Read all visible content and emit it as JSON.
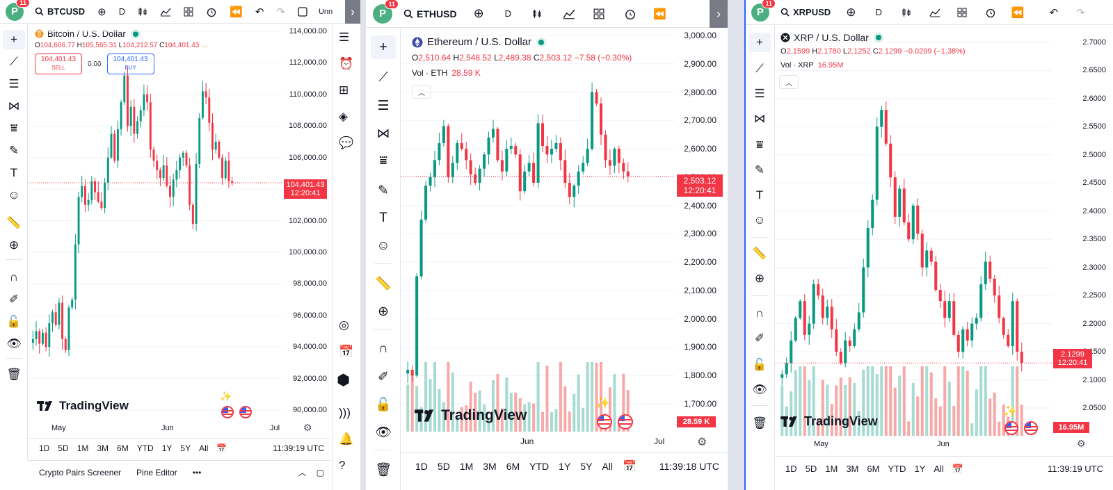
{
  "icons": {
    "add": "⊕",
    "interval": "D",
    "candles": "candle-icon",
    "indicators": "indicators-icon",
    "layout": "grid-icon",
    "alert": "alarm-icon",
    "replay": "replay-icon",
    "undo": "↶",
    "redo": "↷"
  },
  "windows": [
    {
      "symbol": "BTCUSD",
      "badge": "11",
      "avatar": "P",
      "partial_label": "Unn",
      "title": "Bitcoin / U.S. Dollar",
      "ohlc": {
        "o": "104,606.77",
        "h": "105,565.31",
        "l": "104,212.57",
        "c": "104,401.43"
      },
      "sell": {
        "price": "104,401.43",
        "label": "SELL"
      },
      "spread": "0.00",
      "buy": {
        "price": "104,401.43",
        "label": "BUY"
      },
      "price_tag": "104,401.43",
      "countdown": "12:20:41",
      "price_axis": [
        "114,000.00",
        "112,000.00",
        "110,000.00",
        "108,000.00",
        "106,000.00",
        "104,000.00",
        "102,000.00",
        "100,000.00",
        "98,000.00",
        "96,000.00",
        "94,000.00",
        "92,000.00",
        "90,000.00"
      ],
      "time_axis": [
        "May",
        "Jun",
        "Jul"
      ],
      "ranges": [
        "1D",
        "5D",
        "1M",
        "3M",
        "6M",
        "YTD",
        "1Y",
        "5Y",
        "All"
      ],
      "clock": "11:39:19 UTC",
      "panel_tabs": [
        "Crypto Pairs Screener",
        "Pine Editor"
      ],
      "brand": "TradingView"
    },
    {
      "symbol": "ETHUSD",
      "badge": "11",
      "avatar": "P",
      "title": "Ethereum / U.S. Dollar",
      "ohlc": {
        "o": "2,510.64",
        "h": "2,548.52",
        "l": "2,489.38",
        "c": "2,503.12",
        "chg": "−7.58 (−0.30%)"
      },
      "vol_label": "Vol · ETH",
      "vol_value": "28.59 K",
      "price_tag": "2,503.12",
      "countdown": "12:20:41",
      "vol_tag": "28.59 K",
      "price_axis": [
        "3,000.00",
        "2,900.00",
        "2,800.00",
        "2,700.00",
        "2,600.00",
        "2,500.00",
        "2,400.00",
        "2,300.00",
        "2,200.00",
        "2,100.00",
        "2,000.00",
        "1,900.00",
        "1,800.00",
        "1,700.00"
      ],
      "time_axis": [
        "Jun",
        "Jul"
      ],
      "ranges": [
        "1D",
        "5D",
        "1M",
        "3M",
        "6M",
        "YTD",
        "1Y",
        "5Y",
        "All"
      ],
      "clock": "11:39:18 UTC",
      "brand": "TradingView"
    },
    {
      "symbol": "XRPUSD",
      "badge": "11",
      "avatar": "P",
      "title": "XRP / U.S. Dollar",
      "ohlc": {
        "o": "2.1599",
        "h": "2.1780",
        "l": "2.1252",
        "c": "2.1299",
        "chg": "−0.0299 (−1.38%)"
      },
      "vol_label": "Vol · XRP",
      "vol_value": "16.95M",
      "price_tag": "2.1299",
      "countdown": "12:20:41",
      "vol_tag": "16.95M",
      "price_axis": [
        "2.7000",
        "2.6500",
        "2.6000",
        "2.5500",
        "2.5000",
        "2.4500",
        "2.4000",
        "2.3500",
        "2.3000",
        "2.2500",
        "2.2000",
        "2.1500",
        "2.1000",
        "2.0500"
      ],
      "time_axis": [
        "May",
        "Jun"
      ],
      "ranges": [
        "1D",
        "5D",
        "1M",
        "3M",
        "6M",
        "YTD",
        "1Y",
        "5Y",
        "All"
      ],
      "clock": "11:39:19 UTC",
      "brand": "TradingView"
    }
  ],
  "colors": {
    "up": "#089981",
    "down": "#f23645",
    "vol_up": "#a6dbd2",
    "vol_down": "#f7a9a7",
    "accent": "#2962ff"
  },
  "chart_data": [
    {
      "type": "candlestick",
      "symbol": "BTCUSD",
      "ylim": [
        89000,
        115000
      ],
      "close": [
        94500,
        95000,
        94200,
        94900,
        94000,
        95500,
        96200,
        95400,
        96800,
        94500,
        93800,
        96500,
        97000,
        100500,
        103500,
        104200,
        103000,
        103300,
        104500,
        103800,
        103200,
        102800,
        104400,
        106000,
        107500,
        105800,
        107800,
        109500,
        111200,
        108000,
        109200,
        107500,
        108300,
        109000,
        110000,
        109500,
        106500,
        105800,
        105200,
        104700,
        105500,
        104200,
        103500,
        104600,
        105200,
        106000,
        106300,
        105500,
        103000,
        101800,
        105600,
        108500,
        110200,
        109800,
        108200,
        106500,
        107000,
        106000,
        104700,
        105800,
        104500,
        104400
      ]
    },
    {
      "type": "candlestick",
      "symbol": "ETHUSD",
      "ylim": [
        1650,
        3030
      ],
      "close": [
        1820,
        1800,
        2150,
        2350,
        2470,
        2500,
        2560,
        2620,
        2680,
        2500,
        2550,
        2620,
        2600,
        2560,
        2510,
        2480,
        2530,
        2580,
        2640,
        2670,
        2560,
        2520,
        2600,
        2610,
        2580,
        2450,
        2520,
        2550,
        2480,
        2690,
        2610,
        2580,
        2600,
        2620,
        2560,
        2480,
        2430,
        2470,
        2520,
        2550,
        2600,
        2800,
        2760,
        2650,
        2560,
        2540,
        2600,
        2550,
        2520,
        2503
      ]
    },
    {
      "type": "candlestick",
      "symbol": "XRPUSD",
      "ylim": [
        2.0,
        2.72
      ],
      "close": [
        2.11,
        2.13,
        2.17,
        2.21,
        2.24,
        2.18,
        2.2,
        2.27,
        2.25,
        2.21,
        2.23,
        2.19,
        2.15,
        2.13,
        2.17,
        2.16,
        2.19,
        2.22,
        2.3,
        2.37,
        2.42,
        2.55,
        2.58,
        2.52,
        2.46,
        2.39,
        2.44,
        2.38,
        2.35,
        2.41,
        2.36,
        2.3,
        2.33,
        2.31,
        2.26,
        2.24,
        2.21,
        2.24,
        2.18,
        2.15,
        2.19,
        2.17,
        2.2,
        2.21,
        2.27,
        2.31,
        2.28,
        2.25,
        2.21,
        2.18,
        2.16,
        2.24,
        2.15,
        2.13
      ]
    }
  ]
}
